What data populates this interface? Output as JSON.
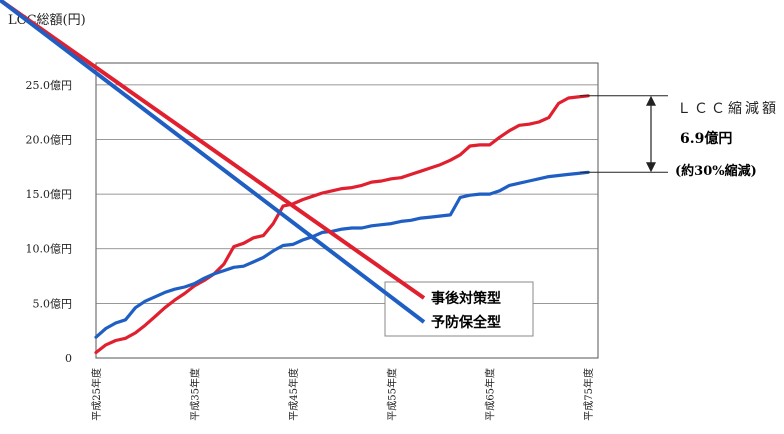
{
  "chart_data": {
    "type": "line",
    "ylabel": "LCC総額(円)",
    "y_unit_suffix": "億円",
    "yticks": [
      {
        "value": 0,
        "label": "0"
      },
      {
        "value": 5,
        "label": "5.0億円"
      },
      {
        "value": 10,
        "label": "10.0億円"
      },
      {
        "value": 15,
        "label": "15.0億円"
      },
      {
        "value": 20,
        "label": "20.0億円"
      },
      {
        "value": 25,
        "label": "25.0億円"
      }
    ],
    "ylim": [
      0,
      27
    ],
    "xlim": [
      25,
      76
    ],
    "xticks": [
      {
        "value": 25,
        "label": "平成25年度"
      },
      {
        "value": 35,
        "label": "平成35年度"
      },
      {
        "value": 45,
        "label": "平成45年度"
      },
      {
        "value": 55,
        "label": "平成55年度"
      },
      {
        "value": 65,
        "label": "平成65年度"
      },
      {
        "value": 75,
        "label": "平成75年度"
      }
    ],
    "grid": "horizontal",
    "legend_position": "bottom-right",
    "series": [
      {
        "name": "事後対策型",
        "color": "#e0202e",
        "x": [
          25,
          26,
          27,
          28,
          29,
          30,
          31,
          32,
          33,
          34,
          35,
          36,
          37,
          38,
          39,
          40,
          41,
          42,
          43,
          44,
          45,
          46,
          47,
          48,
          49,
          50,
          51,
          52,
          53,
          54,
          55,
          56,
          57,
          58,
          59,
          60,
          61,
          62,
          63,
          64,
          65,
          66,
          67,
          68,
          69,
          70,
          71,
          72,
          73,
          74,
          75
        ],
        "values": [
          0.5,
          1.2,
          1.6,
          1.8,
          2.3,
          3.0,
          3.8,
          4.6,
          5.3,
          5.9,
          6.6,
          7.1,
          7.7,
          8.6,
          10.2,
          10.5,
          11.0,
          11.2,
          12.3,
          13.9,
          14.1,
          14.5,
          14.8,
          15.1,
          15.3,
          15.5,
          15.6,
          15.8,
          16.1,
          16.2,
          16.4,
          16.5,
          16.8,
          17.1,
          17.4,
          17.7,
          18.1,
          18.6,
          19.4,
          19.5,
          19.5,
          20.2,
          20.8,
          21.3,
          21.4,
          21.6,
          22.0,
          23.3,
          23.8,
          23.9,
          24.0
        ]
      },
      {
        "name": "予防保全型",
        "color": "#1f5fc4",
        "x": [
          25,
          26,
          27,
          28,
          29,
          30,
          31,
          32,
          33,
          34,
          35,
          36,
          37,
          38,
          39,
          40,
          41,
          42,
          43,
          44,
          45,
          46,
          47,
          48,
          49,
          50,
          51,
          52,
          53,
          54,
          55,
          56,
          57,
          58,
          59,
          60,
          61,
          62,
          63,
          64,
          65,
          66,
          67,
          68,
          69,
          70,
          71,
          72,
          73,
          74,
          75
        ],
        "values": [
          1.9,
          2.7,
          3.2,
          3.5,
          4.6,
          5.2,
          5.6,
          6.0,
          6.3,
          6.5,
          6.8,
          7.3,
          7.7,
          8.0,
          8.3,
          8.4,
          8.8,
          9.2,
          9.8,
          10.3,
          10.4,
          10.8,
          11.1,
          11.5,
          11.6,
          11.8,
          11.9,
          11.9,
          12.1,
          12.2,
          12.3,
          12.5,
          12.6,
          12.8,
          12.9,
          13.0,
          13.1,
          14.7,
          14.9,
          15.0,
          15.0,
          15.3,
          15.8,
          16.0,
          16.2,
          16.4,
          16.6,
          16.7,
          16.8,
          16.9,
          17.0
        ]
      }
    ],
    "annotation": {
      "title": "ＬＣＣ縮減額",
      "value": "6.9億円",
      "note": "(約30%縮減)"
    }
  }
}
